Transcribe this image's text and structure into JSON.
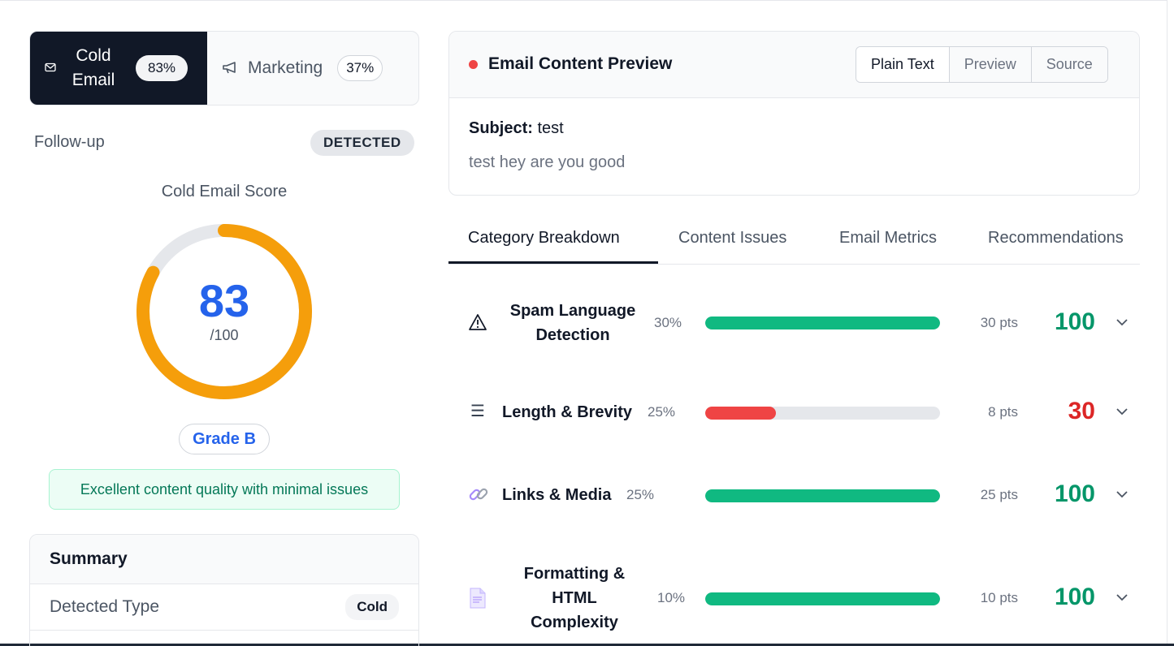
{
  "email_type": {
    "options": [
      {
        "label": "Cold Email",
        "percent": "83%",
        "icon": "envelope-icon",
        "active": true
      },
      {
        "label": "Marketing",
        "percent": "37%",
        "icon": "megaphone-icon",
        "active": false
      }
    ]
  },
  "followup": {
    "label": "Follow-up",
    "badge": "DETECTED"
  },
  "score": {
    "title": "Cold Email Score",
    "value": "83",
    "max": "/100",
    "fraction": 0.83,
    "grade": "Grade B",
    "message": "Excellent content quality with minimal issues"
  },
  "summary": {
    "title": "Summary",
    "rows": [
      {
        "key": "Detected Type",
        "value": "Cold"
      }
    ]
  },
  "preview": {
    "title": "Email Content Preview",
    "view_modes": [
      "Plain Text",
      "Preview",
      "Source"
    ],
    "active_view": "Plain Text",
    "subject_label": "Subject:",
    "subject": "test",
    "body": "test hey are you good"
  },
  "tabs": [
    "Category Breakdown",
    "Content Issues",
    "Email Metrics",
    "Recommendations"
  ],
  "active_tab": "Category Breakdown",
  "categories": [
    {
      "icon": "warning-icon",
      "name": "Spam Language Detection",
      "weight": "30%",
      "fill": 1.0,
      "pts": "30 pts",
      "score": "100",
      "status": "good"
    },
    {
      "icon": "list-icon",
      "name": "Length & Brevity",
      "weight": "25%",
      "fill": 0.3,
      "pts": "8 pts",
      "score": "30",
      "status": "bad"
    },
    {
      "icon": "link-icon",
      "name": "Links & Media",
      "weight": "25%",
      "fill": 1.0,
      "pts": "25 pts",
      "score": "100",
      "status": "good"
    },
    {
      "icon": "document-icon",
      "name": "Formatting & HTML Complexity",
      "weight": "10%",
      "fill": 1.0,
      "pts": "10 pts",
      "score": "100",
      "status": "good"
    }
  ],
  "colors": {
    "good": "#10b981",
    "good_text": "#059669",
    "bad": "#ef4444",
    "bad_text": "#dc2626",
    "gauge": "#f59e0b",
    "gauge_track": "#e5e7eb",
    "accent_blue": "#2563eb"
  }
}
